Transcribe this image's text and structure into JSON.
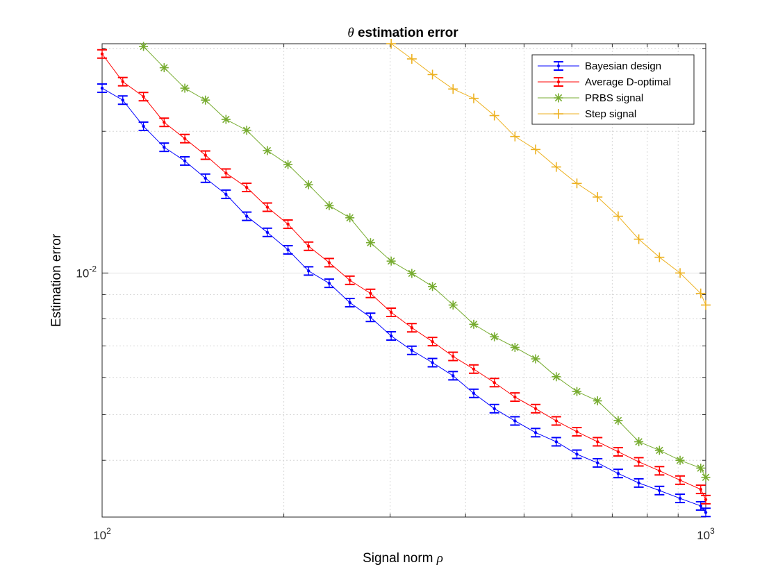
{
  "chart_data": {
    "type": "line",
    "title_math": "θ",
    "title_text": " estimation error",
    "xlabel_text": "Signal norm ",
    "xlabel_math": "ρ",
    "ylabel": "Estimation error",
    "xscale": "log",
    "yscale": "log",
    "xlim": [
      100,
      1000
    ],
    "ylim": [
      0.00303,
      0.0307
    ],
    "grid": true,
    "legend_position": "top-right",
    "x_tick_labels": [
      {
        "value": 100,
        "base": "10",
        "exp": "2"
      },
      {
        "value": 1000,
        "base": "10",
        "exp": "3"
      }
    ],
    "y_tick_labels": [
      {
        "value": 0.01,
        "base": "10",
        "exp": "-2"
      }
    ],
    "series": [
      {
        "name": "Bayesian design",
        "color": "#0000ff",
        "marker": "dot-errorbar",
        "x": [
          100,
          108.2,
          117.1,
          126.7,
          137.1,
          148.3,
          160.4,
          173.6,
          187.8,
          203.2,
          219.8,
          237.8,
          257.3,
          278.4,
          301.2,
          325.9,
          352.6,
          381.4,
          412.7,
          446.5,
          483.0,
          522.6,
          565.4,
          611.7,
          661.8,
          716.0,
          774.6,
          838.1,
          906.7,
          981.0,
          1000
        ],
        "y": [
          0.0247,
          0.0233,
          0.0205,
          0.0185,
          0.0173,
          0.0159,
          0.0147,
          0.0132,
          0.0122,
          0.0112,
          0.0101,
          0.00951,
          0.00865,
          0.00805,
          0.00735,
          0.00685,
          0.00645,
          0.00605,
          0.00555,
          0.00515,
          0.00485,
          0.00458,
          0.00438,
          0.00412,
          0.00395,
          0.00375,
          0.00358,
          0.00345,
          0.00332,
          0.0032,
          0.0031
        ]
      },
      {
        "name": "Average D-optimal",
        "color": "#ff0000",
        "marker": "dot-errorbar",
        "x": [
          100,
          108.2,
          117.1,
          126.7,
          137.1,
          148.3,
          160.4,
          173.6,
          187.8,
          203.2,
          219.8,
          237.8,
          257.3,
          278.4,
          301.2,
          325.9,
          352.6,
          381.4,
          412.7,
          446.5,
          483.0,
          522.6,
          565.4,
          611.7,
          661.8,
          716.0,
          774.6,
          838.1,
          906.7,
          981.0,
          1000
        ],
        "y": [
          0.0292,
          0.0255,
          0.0237,
          0.0209,
          0.0193,
          0.0178,
          0.0163,
          0.0152,
          0.0138,
          0.0127,
          0.0114,
          0.01052,
          0.00965,
          0.00905,
          0.00825,
          0.00765,
          0.00715,
          0.00665,
          0.00625,
          0.00585,
          0.00545,
          0.00515,
          0.00485,
          0.0046,
          0.00438,
          0.00417,
          0.00397,
          0.0038,
          0.00363,
          0.00347,
          0.0033
        ]
      },
      {
        "name": "PRBS signal",
        "color": "#77ac30",
        "marker": "asterisk",
        "x": [
          117.1,
          126.7,
          137.1,
          148.3,
          160.4,
          173.6,
          187.8,
          203.2,
          219.8,
          237.8,
          257.3,
          278.4,
          301.2,
          325.9,
          352.6,
          381.4,
          412.7,
          446.5,
          483.0,
          522.6,
          565.4,
          611.7,
          661.8,
          716.0,
          774.6,
          838.1,
          906.7,
          981.0,
          1000
        ],
        "y": [
          0.0303,
          0.0273,
          0.0247,
          0.0233,
          0.0212,
          0.0201,
          0.0182,
          0.017,
          0.0154,
          0.0139,
          0.0131,
          0.0116,
          0.0106,
          0.00998,
          0.00936,
          0.00855,
          0.00778,
          0.00732,
          0.00695,
          0.00657,
          0.00602,
          0.0056,
          0.00535,
          0.00486,
          0.00438,
          0.0042,
          0.004,
          0.00385,
          0.00368
        ]
      },
      {
        "name": "Step signal",
        "color": "#edb120",
        "marker": "plus",
        "x": [
          301.2,
          325.9,
          352.6,
          381.4,
          412.7,
          446.5,
          483.0,
          522.6,
          565.4,
          611.7,
          661.8,
          716.0,
          774.6,
          838.1,
          906.7,
          981.0,
          1000
        ],
        "y": [
          0.0307,
          0.0285,
          0.0264,
          0.0246,
          0.0235,
          0.0216,
          0.0195,
          0.0183,
          0.0168,
          0.0155,
          0.0145,
          0.0132,
          0.0118,
          0.0108,
          0.01,
          0.00905,
          0.00855
        ]
      }
    ]
  }
}
